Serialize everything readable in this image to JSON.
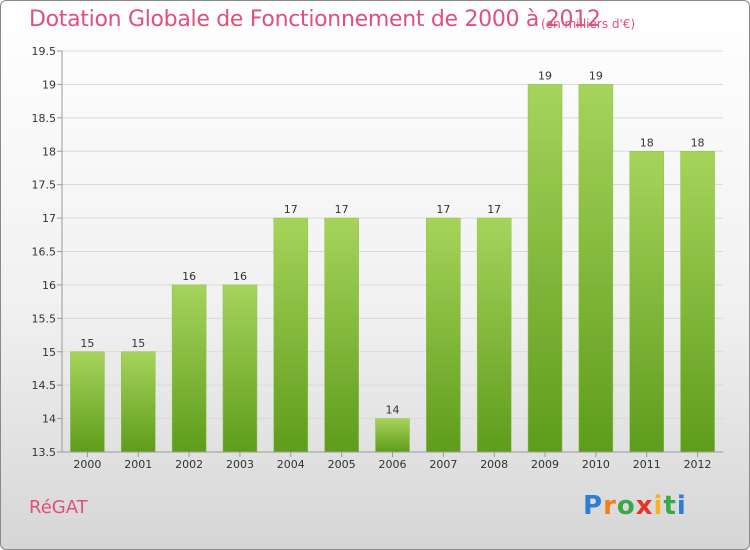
{
  "title": "Dotation Globale de Fonctionnement de 2000 à 2012",
  "subtitle": "(en milliers d'€)",
  "place": "RéGAT",
  "logo": {
    "text": "Proxiti",
    "letter_colors": [
      "#2e7fd4",
      "#f07f1e",
      "#3aa84a",
      "#e6332a",
      "#f3b51b",
      "#3aa84a",
      "#2e7fd4"
    ]
  },
  "colors": {
    "bar_top": "#a6d45a",
    "bar_bottom": "#5e9c1c",
    "axis": "#9a9a9a",
    "grid": "#d9d9d9",
    "text": "#333333"
  },
  "chart_data": {
    "type": "bar",
    "categories": [
      "2000",
      "2001",
      "2002",
      "2003",
      "2004",
      "2005",
      "2006",
      "2007",
      "2008",
      "2009",
      "2010",
      "2011",
      "2012"
    ],
    "values": [
      15,
      15,
      16,
      16,
      17,
      17,
      14,
      17,
      17,
      19,
      19,
      18,
      18
    ],
    "data_labels": [
      "15",
      "15",
      "16",
      "16",
      "17",
      "17",
      "14",
      "17",
      "17",
      "19",
      "19",
      "18",
      "18"
    ],
    "ylim": [
      13.5,
      19.5
    ],
    "yticks": [
      13.5,
      14,
      14.5,
      15,
      15.5,
      16,
      16.5,
      17,
      17.5,
      18,
      18.5,
      19,
      19.5
    ],
    "grid": true,
    "legend": "none"
  }
}
